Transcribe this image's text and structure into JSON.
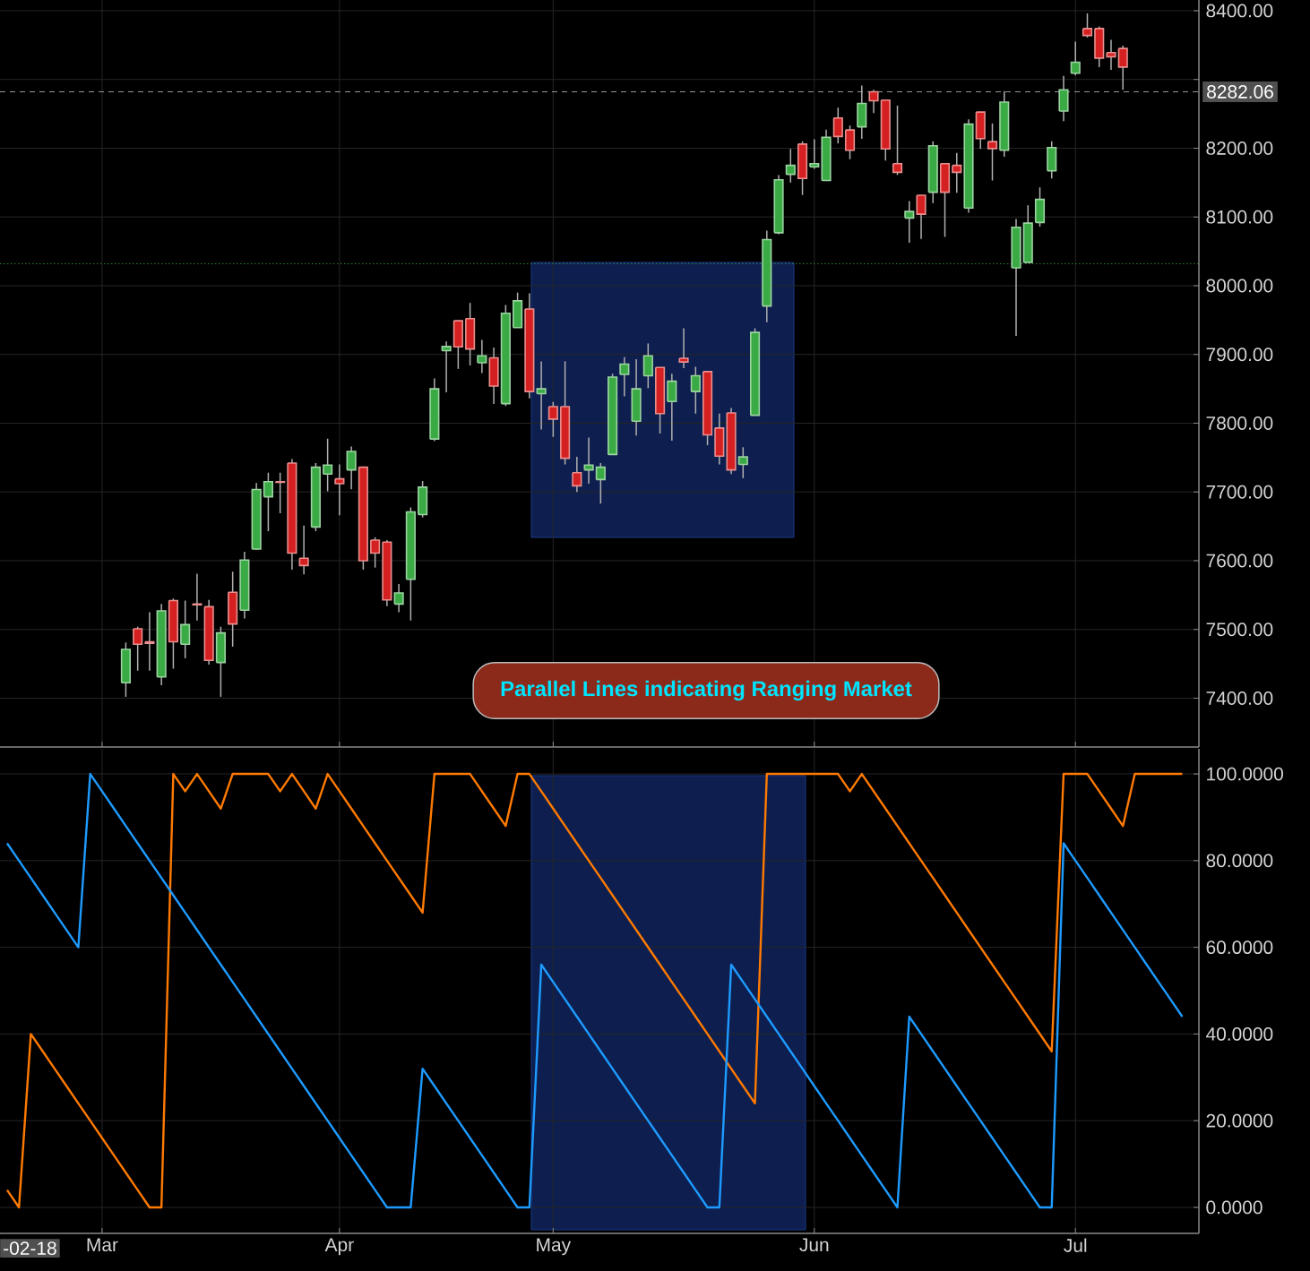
{
  "chart_data": [
    {
      "type": "candlestick",
      "categories": [
        null,
        null,
        null,
        null,
        null,
        null,
        null,
        null,
        null,
        null,
        null,
        null,
        null,
        null,
        null,
        null,
        null,
        null,
        null,
        null,
        null,
        null,
        null,
        null,
        null,
        null,
        null,
        null,
        null,
        null,
        null,
        null,
        null,
        null,
        null,
        null,
        null,
        null,
        null,
        null,
        null,
        null,
        null,
        null,
        null,
        null,
        null,
        null,
        null,
        null,
        null,
        null,
        null,
        null,
        null,
        null,
        null,
        null,
        null,
        null,
        null,
        null,
        null,
        null,
        null,
        null,
        null,
        null,
        null,
        null,
        null,
        null,
        null,
        null,
        null,
        null,
        null,
        null,
        null,
        null,
        null,
        null,
        null,
        null,
        null,
        null,
        null,
        null,
        null,
        null,
        null,
        null,
        null,
        null,
        null,
        null,
        null,
        null,
        null,
        null
      ],
      "ohlc": [
        null,
        null,
        null,
        null,
        null,
        null,
        null,
        null,
        null,
        null,
        [
          7422.5,
          7481,
          7402,
          7471
        ],
        [
          7501,
          7504,
          7440,
          7478.5
        ],
        [
          7482,
          7525,
          7440,
          7480
        ],
        [
          7431,
          7537,
          7419,
          7527
        ],
        [
          7542,
          7545,
          7443,
          7482
        ],
        [
          7478.5,
          7542,
          7458,
          7507
        ],
        [
          7537,
          7581,
          7513,
          7536
        ],
        [
          7533,
          7543,
          7449,
          7455
        ],
        [
          7452,
          7504,
          7402,
          7495
        ],
        [
          7554,
          7584,
          7475,
          7508
        ],
        [
          7528,
          7613,
          7516,
          7601
        ],
        [
          7617,
          7713,
          7616,
          7703.5
        ],
        [
          7693,
          7728,
          7643,
          7715
        ],
        [
          7715,
          7728,
          7669,
          7714
        ],
        [
          7742,
          7748,
          7587,
          7611
        ],
        [
          7603.5,
          7651,
          7580,
          7593
        ],
        [
          7649,
          7742,
          7643,
          7736
        ],
        [
          7726,
          7777.5,
          7701,
          7739
        ],
        [
          7719,
          7740,
          7666,
          7712
        ],
        [
          7732,
          7766,
          7704,
          7759
        ],
        [
          7736,
          7737,
          7587,
          7600
        ],
        [
          7630,
          7634,
          7590,
          7611
        ],
        [
          7627,
          7630,
          7534,
          7543
        ],
        [
          7537,
          7566,
          7525,
          7553
        ],
        [
          7573,
          7677.5,
          7513,
          7671
        ],
        [
          7667,
          7716,
          7663,
          7707
        ],
        [
          7777,
          7865,
          7774,
          7850
        ],
        [
          7905.5,
          7919,
          7845,
          7911.5
        ],
        [
          7949,
          7949,
          7879,
          7911
        ],
        [
          7952,
          7975,
          7884,
          7908
        ],
        [
          7888,
          7921,
          7873,
          7898
        ],
        [
          7895,
          7910,
          7828,
          7854
        ],
        [
          7828.5,
          7972,
          7825,
          7960
        ],
        [
          7939,
          7990,
          7939,
          7978
        ],
        [
          7966,
          7989,
          7836,
          7846
        ],
        [
          7843,
          7890,
          7791,
          7850
        ],
        [
          7824,
          7831,
          7780,
          7806
        ],
        [
          7824,
          7890,
          7740,
          7749
        ],
        [
          7728,
          7751,
          7700,
          7709
        ],
        [
          7732,
          7779,
          7712,
          7739
        ],
        [
          7718,
          7742,
          7683,
          7736
        ],
        [
          7754.5,
          7872,
          7754,
          7867
        ],
        [
          7871,
          7896,
          7839,
          7886
        ],
        [
          7803,
          7893,
          7782,
          7850
        ],
        [
          7869,
          7916,
          7851,
          7898
        ],
        [
          7881,
          7881,
          7785,
          7814
        ],
        [
          7831.5,
          7872,
          7774.5,
          7861
        ],
        [
          7894.5,
          7938,
          7880,
          7889
        ],
        [
          7846,
          7882,
          7814,
          7869
        ],
        [
          7875,
          7875,
          7768,
          7783
        ],
        [
          7793,
          7814,
          7740,
          7752
        ],
        [
          7815,
          7822,
          7726,
          7732
        ],
        [
          7740,
          7765,
          7720,
          7751
        ],
        [
          7811.5,
          7938,
          7811,
          7932
        ],
        [
          7970.5,
          8080,
          7947,
          8067
        ],
        [
          8077,
          8161,
          8075,
          8154
        ],
        [
          8162,
          8199,
          8150,
          8175
        ],
        [
          8206,
          8210,
          8132,
          8156
        ],
        [
          8173,
          8213,
          8170,
          8177.5
        ],
        [
          8153,
          8227,
          8153,
          8216
        ],
        [
          8244,
          8259,
          8207,
          8217
        ],
        [
          8226.5,
          8233,
          8184,
          8197
        ],
        [
          8231,
          8291,
          8213.5,
          8265
        ],
        [
          8282,
          8285,
          8251,
          8269
        ],
        [
          8270,
          8270,
          8182,
          8199
        ],
        [
          8177.5,
          8262,
          8161,
          8165
        ],
        [
          8098.5,
          8123,
          8062.5,
          8108
        ],
        [
          8131.5,
          8132,
          8068,
          8104
        ],
        [
          8136,
          8210,
          8120,
          8203.5
        ],
        [
          8177.5,
          8178,
          8071,
          8136
        ],
        [
          8175,
          8193,
          8135,
          8165
        ],
        [
          8113,
          8242,
          8106,
          8235
        ],
        [
          8252.5,
          8253,
          8199,
          8214
        ],
        [
          8209.5,
          8236,
          8153,
          8199.5
        ],
        [
          8197,
          8283,
          8187.5,
          8267
        ],
        [
          8026,
          8097,
          7927,
          8085
        ],
        [
          8034,
          8117,
          8034,
          8091
        ],
        [
          8092,
          8143,
          8086,
          8125.5
        ],
        [
          8167,
          8210,
          8156,
          8201
        ],
        [
          8254,
          8305,
          8239.5,
          8285
        ],
        [
          8309,
          8355,
          8306,
          8325
        ],
        [
          8374,
          8396,
          8361,
          8364
        ],
        [
          8374,
          8377,
          8318,
          8331
        ],
        [
          8339,
          8357.5,
          8314,
          8333
        ],
        [
          8345,
          8349,
          8285,
          8318
        ],
        null,
        null,
        null,
        null,
        null
      ],
      "colors": [
        null,
        null,
        null,
        null,
        null,
        null,
        null,
        null,
        null,
        null,
        "#3aaa44",
        "#d42020",
        "#d42020",
        "#3aaa44",
        "#d42020",
        "#3aaa44",
        "#d42020",
        "#d42020",
        "#3aaa44",
        "#d42020",
        "#3aaa44",
        "#3aaa44",
        "#3aaa44",
        "#d42020",
        "#d42020",
        "#d42020",
        "#3aaa44",
        "#3aaa44",
        "#d42020",
        "#3aaa44",
        "#d42020",
        "#d42020",
        "#d42020",
        "#3aaa44",
        "#3aaa44",
        "#3aaa44",
        "#3aaa44",
        "#3aaa44",
        "#d42020",
        "#d42020",
        "#3aaa44",
        "#d42020",
        "#3aaa44",
        "#3aaa44",
        "#d42020",
        "#3aaa44",
        "#d42020",
        "#d42020",
        "#d42020",
        "#3aaa44",
        "#3aaa44",
        "#3aaa44",
        "#3aaa44",
        "#3aaa44",
        "#3aaa44",
        "#d42020",
        "#3aaa44",
        "#d42020",
        "#3aaa44",
        "#d42020",
        "#d42020",
        "#d42020",
        "#3aaa44",
        "#3aaa44",
        "#3aaa44",
        "#3aaa44",
        "#3aaa44",
        "#d42020",
        "#3aaa44",
        "#3aaa44",
        "#d42020",
        "#d42020",
        "#3aaa44",
        "#d42020",
        "#d42020",
        "#d42020",
        "#3aaa44",
        "#d42020",
        "#3aaa44",
        "#d42020",
        "#d42020",
        "#3aaa44",
        "#d42020",
        "#d42020",
        "#3aaa44",
        "#3aaa44",
        "#3aaa44",
        "#3aaa44",
        "#3aaa44",
        "#3aaa44",
        "#3aaa44",
        "#d42020",
        "#d42020",
        "#d42020",
        "#d42020",
        null,
        null,
        null,
        null,
        null
      ],
      "ylim": [
        7329,
        8415.6
      ],
      "yticks": [
        {
          "value": 7400,
          "label": "7400.00"
        },
        {
          "value": 7500,
          "label": "7500.00"
        },
        {
          "value": 7600,
          "label": "7600.00"
        },
        {
          "value": 7700,
          "label": "7700.00"
        },
        {
          "value": 7800,
          "label": "7800.00"
        },
        {
          "value": 7900,
          "label": "7900.00"
        },
        {
          "value": 8000,
          "label": "8000.00"
        },
        {
          "value": 8100,
          "label": "8100.00"
        },
        {
          "value": 8200,
          "label": "8200.00"
        },
        {
          "value": 8300,
          "label": null
        },
        {
          "value": 8400,
          "label": "8400.00"
        }
      ],
      "grid": true,
      "ref_lines": [
        {
          "axis": "y",
          "value": 8282.06,
          "label": "8282.06",
          "color": "#9a9a9a",
          "line_style": "dashed"
        },
        {
          "axis": "y",
          "value": 8032,
          "color": "#2e8b3a",
          "line_style": "dotted"
        }
      ],
      "annotations": [
        "Parallel Lines indicating Ranging Market"
      ]
    },
    {
      "type": "line",
      "categories": [
        null,
        null,
        null,
        null,
        null,
        null,
        null,
        null,
        "Mar",
        null,
        null,
        null,
        null,
        null,
        null,
        null,
        null,
        null,
        null,
        null,
        null,
        null,
        null,
        null,
        null,
        null,
        null,
        null,
        "Apr",
        null,
        null,
        null,
        null,
        null,
        null,
        null,
        null,
        null,
        null,
        null,
        null,
        null,
        null,
        null,
        null,
        null,
        "May",
        null,
        null,
        null,
        null,
        null,
        null,
        null,
        null,
        null,
        null,
        null,
        null,
        null,
        null,
        null,
        null,
        null,
        null,
        null,
        null,
        null,
        "Jun",
        null,
        null,
        null,
        null,
        null,
        null,
        null,
        null,
        null,
        null,
        null,
        null,
        null,
        null,
        null,
        null,
        null,
        null,
        null,
        null,
        null,
        "Jul",
        null,
        null,
        null,
        null,
        null,
        null,
        null,
        null,
        null
      ],
      "series": [
        {
          "color": "#ff7a00",
          "values": [
            4,
            0,
            40,
            36,
            32,
            28,
            24,
            20,
            16,
            12,
            8,
            4,
            0,
            0,
            100,
            96,
            100,
            96,
            92,
            100,
            100,
            100,
            100,
            96,
            100,
            96,
            92,
            100,
            96,
            92,
            88,
            84,
            80,
            76,
            72,
            68,
            100,
            100,
            100,
            100,
            96,
            92,
            88,
            100,
            100,
            96,
            92,
            88,
            84,
            80,
            76,
            72,
            68,
            64,
            60,
            56,
            52,
            48,
            44,
            40,
            36,
            32,
            28,
            24,
            100,
            100,
            100,
            100,
            100,
            100,
            100,
            96,
            100,
            96,
            92,
            88,
            84,
            80,
            76,
            72,
            68,
            64,
            60,
            56,
            52,
            48,
            44,
            40,
            36,
            100,
            100,
            100,
            96,
            92,
            88,
            100,
            100,
            100,
            100,
            100
          ]
        },
        {
          "color": "#1e9bff",
          "values": [
            84,
            80,
            76,
            72,
            68,
            64,
            60,
            100,
            96,
            92,
            88,
            84,
            80,
            76,
            72,
            68,
            64,
            60,
            56,
            52,
            48,
            44,
            40,
            36,
            32,
            28,
            24,
            20,
            16,
            12,
            8,
            4,
            0,
            0,
            0,
            32,
            28,
            24,
            20,
            16,
            12,
            8,
            4,
            0,
            0,
            56,
            52,
            48,
            44,
            40,
            36,
            32,
            28,
            24,
            20,
            16,
            12,
            8,
            4,
            0,
            0,
            56,
            52,
            48,
            44,
            40,
            36,
            32,
            28,
            24,
            20,
            16,
            12,
            8,
            4,
            0,
            44,
            40,
            36,
            32,
            28,
            24,
            20,
            16,
            12,
            8,
            4,
            0,
            0,
            84,
            80,
            76,
            72,
            68,
            64,
            60,
            56,
            52,
            48,
            44
          ]
        }
      ],
      "ylim": [
        -6,
        105.8
      ],
      "yticks": [
        {
          "value": 0,
          "label": "0.0000"
        },
        {
          "value": 20,
          "label": "20.0000"
        },
        {
          "value": 40,
          "label": "40.0000"
        },
        {
          "value": 60,
          "label": "60.0000"
        },
        {
          "value": 80,
          "label": "80.0000"
        },
        {
          "value": 100,
          "label": "100.0000"
        }
      ],
      "grid": true,
      "annotations": [
        "-02-18"
      ]
    }
  ]
}
